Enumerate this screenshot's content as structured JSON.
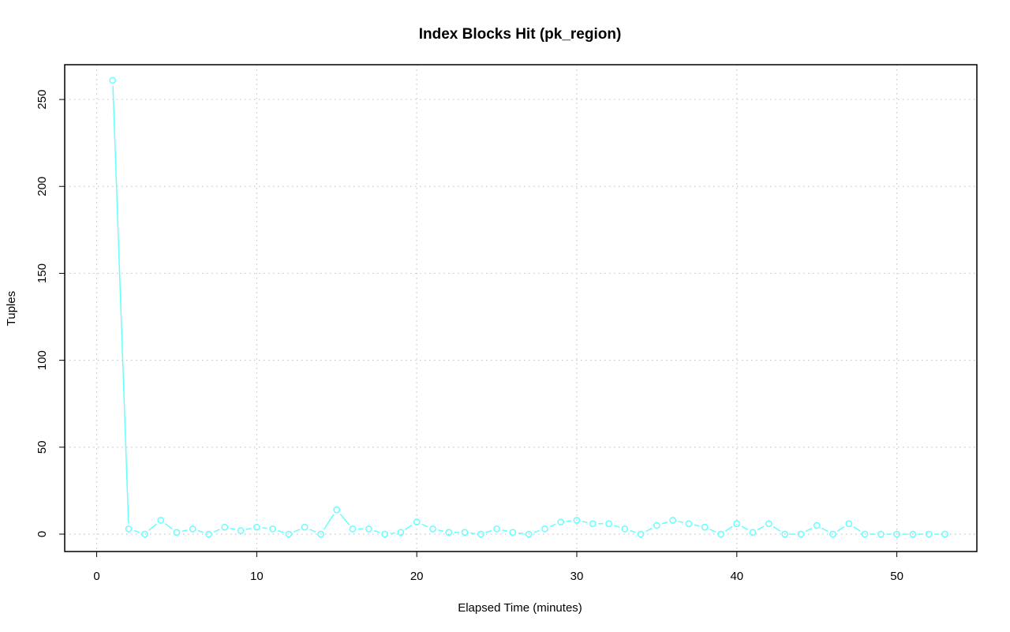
{
  "chart_data": {
    "type": "line",
    "title": "Index Blocks Hit (pk_region)",
    "xlabel": "Elapsed Time (minutes)",
    "ylabel": "Tuples",
    "xlim": [
      -2,
      55
    ],
    "ylim": [
      -10,
      270
    ],
    "xticks": [
      0,
      10,
      20,
      30,
      40,
      50
    ],
    "yticks": [
      0,
      50,
      100,
      150,
      200,
      250
    ],
    "grid": true,
    "series_color": "#66FFFF",
    "series": [
      {
        "x": [
          1,
          2,
          3,
          4,
          5,
          6,
          7,
          8,
          9,
          10,
          11,
          12,
          13,
          14,
          15,
          16,
          17,
          18,
          19,
          20,
          21,
          22,
          23,
          24,
          25,
          26,
          27,
          28,
          29,
          30,
          31,
          32,
          33,
          34,
          35,
          36,
          37,
          38,
          39,
          40,
          41,
          42,
          43,
          44,
          45,
          46,
          47,
          48,
          49,
          50,
          51,
          52,
          53
        ],
        "values": [
          261,
          3,
          0,
          8,
          1,
          3,
          0,
          4,
          2,
          4,
          3,
          0,
          4,
          0,
          14,
          3,
          3,
          0,
          1,
          7,
          3,
          1,
          1,
          0,
          3,
          1,
          0,
          3,
          7,
          8,
          6,
          6,
          3,
          0,
          5,
          8,
          6,
          4,
          0,
          6,
          1,
          6,
          0,
          0,
          5,
          0,
          6,
          0,
          0,
          0,
          0,
          0,
          0
        ]
      }
    ]
  }
}
